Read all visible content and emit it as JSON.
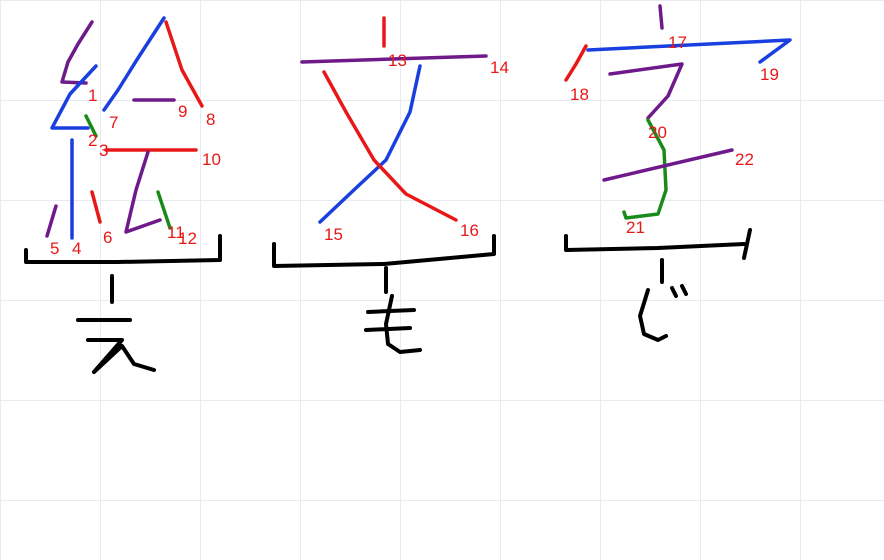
{
  "characters": [
    {
      "glyph": "絵",
      "reading": "え",
      "stroke_labels": [
        "1",
        "2",
        "3",
        "4",
        "5",
        "6",
        "7",
        "8",
        "9",
        "10",
        "11",
        "12"
      ]
    },
    {
      "glyph": "文",
      "reading": "も",
      "stroke_labels": [
        "13",
        "14",
        "15",
        "16"
      ]
    },
    {
      "glyph": "字",
      "reading": "じ",
      "stroke_labels": [
        "17",
        "18",
        "19",
        "20",
        "21",
        "22"
      ]
    }
  ],
  "colors": {
    "red": "#e81818",
    "blue": "#1a3fe0",
    "purple": "#6e1a8a",
    "green": "#1a8a1a",
    "black": "#000000",
    "grid": "#e8eaf2"
  }
}
